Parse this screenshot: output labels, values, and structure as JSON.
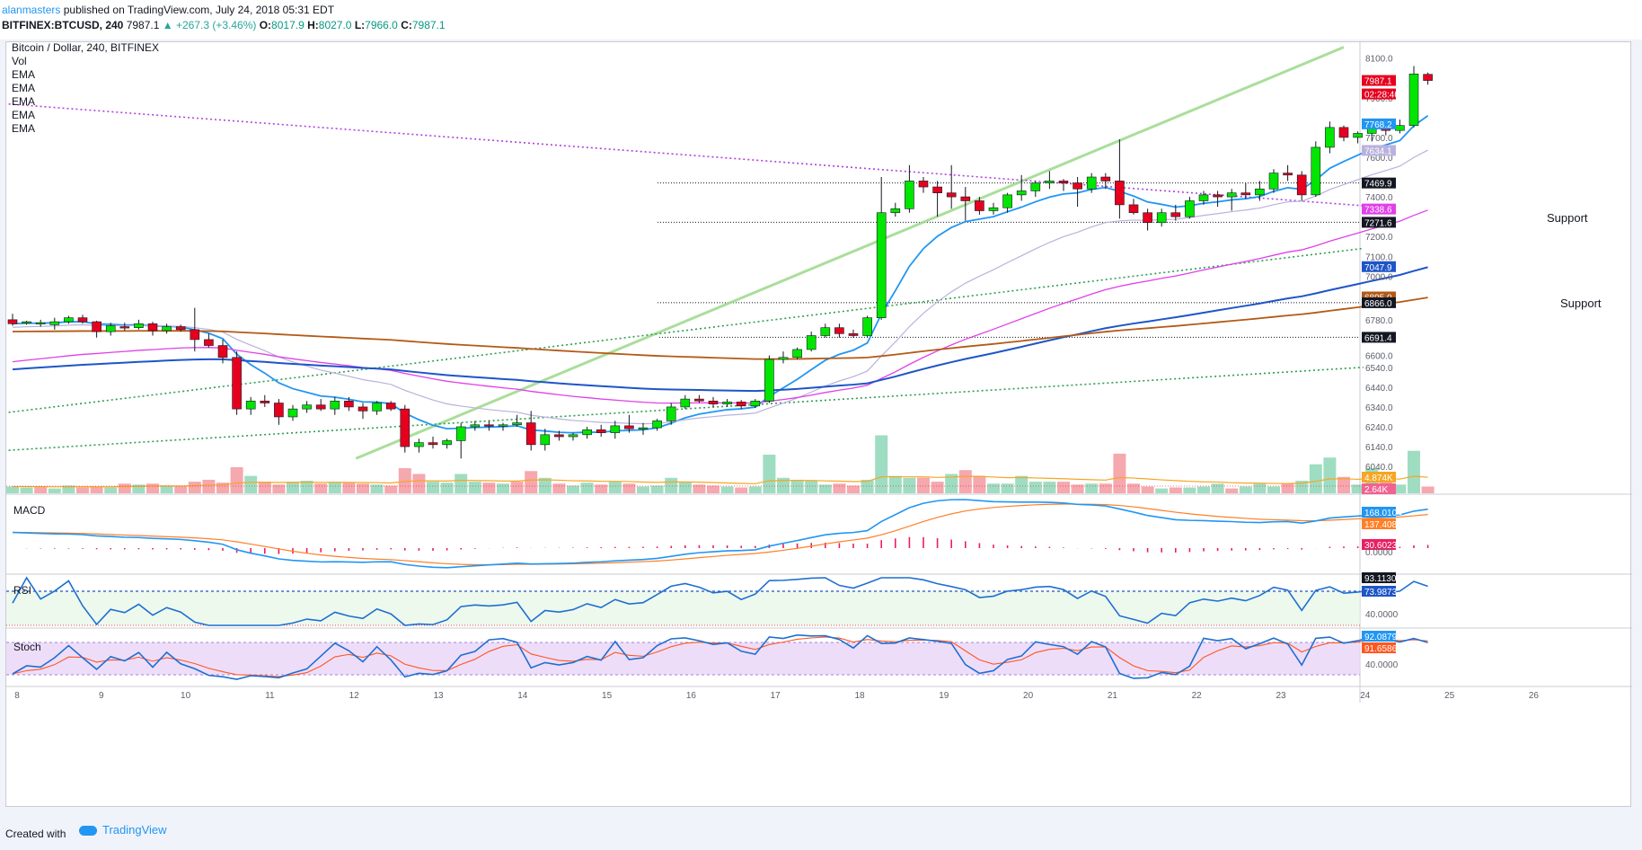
{
  "header": {
    "author": "alanmasters",
    "published": "published on TradingView.com, July 24, 2018 05:31 EDT",
    "symbol": "BITFINEX:BTCUSD, 240",
    "last": "7987.1",
    "change": "▲ +267.3 (+3.46%)",
    "o_label": "O:",
    "o": "8017.9",
    "h_label": "H:",
    "h": "8027.0",
    "l_label": "L:",
    "l": "7966.0",
    "c_label": "C:",
    "c": "7987.1"
  },
  "legend": {
    "title": "Bitcoin / Dollar, 240, BITFINEX",
    "items": [
      "Vol",
      "EMA",
      "EMA",
      "EMA",
      "EMA",
      "EMA"
    ]
  },
  "labels": {
    "support_1": "Support",
    "support_2": "Support",
    "macd": "MACD",
    "rsi": "RSI",
    "stoch": "Stoch"
  },
  "footer": {
    "created": "Created with",
    "brand": "TradingView"
  },
  "colors": {
    "up": "#00e600",
    "down": "#e6001e",
    "ema_fast": "#2196f3",
    "ema_slow_thin": "#b9b2dd",
    "ema_magenta": "#e040e8",
    "ema_blue": "#1e55c8",
    "ema_brown": "#b35a16",
    "trend_green": "#9bd889",
    "trend_purple": "#b040e0",
    "trend_dotted_green": "#2e9e4e"
  },
  "chart_data": {
    "type": "candlestick",
    "symbol": "BTCUSD",
    "interval": "240",
    "x_ticks": [
      "8",
      "9",
      "10",
      "11",
      "12",
      "13",
      "14",
      "15",
      "16",
      "17",
      "18",
      "19",
      "20",
      "21",
      "22",
      "23",
      "24",
      "25",
      "26"
    ],
    "ylim": [
      5900,
      8180
    ],
    "y_ticks": [
      8100.0,
      7900.0,
      7700.0,
      7600.0,
      7400.0,
      7200.0,
      7100.0,
      7000.0,
      6900.0,
      6780.0,
      6600.0,
      6540.0,
      6440.0,
      6340.0,
      6240.0,
      6140.0,
      6040.0
    ],
    "y_tick_labels": [
      "8100.0",
      "7900.0",
      "7700.0",
      "7600.0",
      "7400.0",
      "7200.0",
      "7100.0",
      "7000.0",
      "6900.0",
      "6780.0",
      "6600.0",
      "6540.0",
      "6440.0",
      "6340.0",
      "6240.0",
      "6140.0",
      "6040.0"
    ],
    "price_badges": [
      {
        "value": 7987.1,
        "text": "7987.1",
        "color": "#e6001e"
      },
      {
        "value": 7987.1,
        "text": "02:28:40",
        "color": "#e6001e",
        "offset": 1
      },
      {
        "value": 7768.2,
        "text": "7768.2",
        "color": "#2196f3"
      },
      {
        "value": 7634.1,
        "text": "7634.1",
        "color": "#b9b2dd"
      },
      {
        "value": 7469.9,
        "text": "7469.9",
        "color": "#131722"
      },
      {
        "value": 7338.6,
        "text": "7338.6",
        "color": "#e040e8"
      },
      {
        "value": 7271.6,
        "text": "7271.6",
        "color": "#131722"
      },
      {
        "value": 7047.9,
        "text": "7047.9",
        "color": "#1e55c8"
      },
      {
        "value": 6895.0,
        "text": "6895.0",
        "color": "#b35a16"
      },
      {
        "value": 6866.0,
        "text": "6866.0",
        "color": "#131722"
      },
      {
        "value": 6691.4,
        "text": "6691.4",
        "color": "#131722"
      }
    ],
    "horizontal_levels": [
      7469.9,
      7271.6,
      6866.0,
      6691.4
    ],
    "candles": [
      [
        6780.0,
        6810.0,
        6750.0,
        6760.0
      ],
      [
        6765.0,
        6775.0,
        6755.0,
        6770.0
      ],
      [
        6760.0,
        6780.0,
        6745.0,
        6765.0
      ],
      [
        6755.0,
        6790.0,
        6730.0,
        6770.0
      ],
      [
        6770.0,
        6800.0,
        6760.0,
        6790.0
      ],
      [
        6790.0,
        6805.0,
        6760.0,
        6770.0
      ],
      [
        6770.0,
        6775.0,
        6690.0,
        6720.0
      ],
      [
        6720.0,
        6765.0,
        6700.0,
        6750.0
      ],
      [
        6745.0,
        6765.0,
        6725.0,
        6740.0
      ],
      [
        6740.0,
        6780.0,
        6730.0,
        6760.0
      ],
      [
        6760.0,
        6770.0,
        6700.0,
        6725.0
      ],
      [
        6725.0,
        6760.0,
        6710.0,
        6745.0
      ],
      [
        6745.0,
        6755.0,
        6720.0,
        6730.0
      ],
      [
        6730.0,
        6840.0,
        6620.0,
        6680.0
      ],
      [
        6680.0,
        6710.0,
        6640.0,
        6650.0
      ],
      [
        6650.0,
        6680.0,
        6560.0,
        6590.0
      ],
      [
        6590.0,
        6620.0,
        6300.0,
        6330.0
      ],
      [
        6330.0,
        6390.0,
        6300.0,
        6370.0
      ],
      [
        6370.0,
        6400.0,
        6340.0,
        6360.0
      ],
      [
        6360.0,
        6380.0,
        6250.0,
        6290.0
      ],
      [
        6290.0,
        6350.0,
        6270.0,
        6330.0
      ],
      [
        6330.0,
        6370.0,
        6310.0,
        6350.0
      ],
      [
        6350.0,
        6380.0,
        6320.0,
        6330.0
      ],
      [
        6330.0,
        6390.0,
        6300.0,
        6370.0
      ],
      [
        6370.0,
        6390.0,
        6320.0,
        6340.0
      ],
      [
        6340.0,
        6360.0,
        6280.0,
        6320.0
      ],
      [
        6320.0,
        6370.0,
        6300.0,
        6360.0
      ],
      [
        6360.0,
        6370.0,
        6320.0,
        6330.0
      ],
      [
        6330.0,
        6350.0,
        6110.0,
        6140.0
      ],
      [
        6140.0,
        6180.0,
        6110.0,
        6160.0
      ],
      [
        6160.0,
        6190.0,
        6130.0,
        6150.0
      ],
      [
        6150.0,
        6180.0,
        6130.0,
        6170.0
      ],
      [
        6170.0,
        6260.0,
        6080.0,
        6240.0
      ],
      [
        6240.0,
        6270.0,
        6220.0,
        6250.0
      ],
      [
        6250.0,
        6270.0,
        6220.0,
        6245.0
      ],
      [
        6245.0,
        6260.0,
        6220.0,
        6250.0
      ],
      [
        6250.0,
        6300.0,
        6240.0,
        6260.0
      ],
      [
        6260.0,
        6320.0,
        6120.0,
        6150.0
      ],
      [
        6150.0,
        6230.0,
        6120.0,
        6200.0
      ],
      [
        6200.0,
        6220.0,
        6170.0,
        6190.0
      ],
      [
        6190.0,
        6210.0,
        6170.0,
        6200.0
      ],
      [
        6200.0,
        6240.0,
        6180.0,
        6225.0
      ],
      [
        6225.0,
        6250.0,
        6190.0,
        6210.0
      ],
      [
        6210.0,
        6270.0,
        6180.0,
        6245.0
      ],
      [
        6245.0,
        6300.0,
        6210.0,
        6230.0
      ],
      [
        6230.0,
        6260.0,
        6200.0,
        6235.0
      ],
      [
        6235.0,
        6280.0,
        6220.0,
        6270.0
      ],
      [
        6270.0,
        6360.0,
        6250.0,
        6340.0
      ],
      [
        6340.0,
        6400.0,
        6330.0,
        6380.0
      ],
      [
        6380.0,
        6400.0,
        6360.0,
        6370.0
      ],
      [
        6370.0,
        6390.0,
        6340.0,
        6355.0
      ],
      [
        6355.0,
        6380.0,
        6340.0,
        6365.0
      ],
      [
        6365.0,
        6375.0,
        6330.0,
        6345.0
      ],
      [
        6345.0,
        6380.0,
        6335.0,
        6370.0
      ],
      [
        6370.0,
        6600.0,
        6360.0,
        6580.0
      ],
      [
        6580.0,
        6620.0,
        6560.0,
        6590.0
      ],
      [
        6590.0,
        6640.0,
        6580.0,
        6630.0
      ],
      [
        6630.0,
        6720.0,
        6620.0,
        6700.0
      ],
      [
        6700.0,
        6760.0,
        6690.0,
        6740.0
      ],
      [
        6740.0,
        6760.0,
        6690.0,
        6710.0
      ],
      [
        6710.0,
        6730.0,
        6690.0,
        6700.0
      ],
      [
        6700.0,
        6800.0,
        6690.0,
        6790.0
      ],
      [
        6790.0,
        7500.0,
        6780.0,
        7320.0
      ],
      [
        7320.0,
        7370.0,
        7300.0,
        7340.0
      ],
      [
        7340.0,
        7560.0,
        7320.0,
        7480.0
      ],
      [
        7480.0,
        7500.0,
        7420.0,
        7450.0
      ],
      [
        7450.0,
        7480.0,
        7300.0,
        7420.0
      ],
      [
        7420.0,
        7560.0,
        7340.0,
        7400.0
      ],
      [
        7400.0,
        7450.0,
        7280.0,
        7380.0
      ],
      [
        7380.0,
        7400.0,
        7310.0,
        7330.0
      ],
      [
        7330.0,
        7370.0,
        7310.0,
        7345.0
      ],
      [
        7345.0,
        7420.0,
        7320.0,
        7410.0
      ],
      [
        7410.0,
        7510.0,
        7380.0,
        7430.0
      ],
      [
        7430.0,
        7480.0,
        7400.0,
        7470.0
      ],
      [
        7470.0,
        7530.0,
        7440.0,
        7480.0
      ],
      [
        7480.0,
        7490.0,
        7430.0,
        7470.0
      ],
      [
        7470.0,
        7500.0,
        7350.0,
        7440.0
      ],
      [
        7440.0,
        7520.0,
        7420.0,
        7500.0
      ],
      [
        7500.0,
        7520.0,
        7440.0,
        7480.0
      ],
      [
        7480.0,
        7690.0,
        7290.0,
        7360.0
      ],
      [
        7360.0,
        7390.0,
        7310.0,
        7320.0
      ],
      [
        7320.0,
        7340.0,
        7230.0,
        7270.0
      ],
      [
        7270.0,
        7340.0,
        7250.0,
        7320.0
      ],
      [
        7320.0,
        7360.0,
        7280.0,
        7300.0
      ],
      [
        7300.0,
        7400.0,
        7290.0,
        7380.0
      ],
      [
        7380.0,
        7430.0,
        7360.0,
        7410.0
      ],
      [
        7410.0,
        7430.0,
        7350.0,
        7400.0
      ],
      [
        7400.0,
        7440.0,
        7330.0,
        7420.0
      ],
      [
        7420.0,
        7470.0,
        7390.0,
        7410.0
      ],
      [
        7410.0,
        7480.0,
        7380.0,
        7440.0
      ],
      [
        7440.0,
        7540.0,
        7420.0,
        7520.0
      ],
      [
        7520.0,
        7560.0,
        7480.0,
        7510.0
      ],
      [
        7510.0,
        7530.0,
        7380.0,
        7410.0
      ],
      [
        7410.0,
        7680.0,
        7400.0,
        7650.0
      ],
      [
        7650.0,
        7780.0,
        7620.0,
        7750.0
      ],
      [
        7750.0,
        7760.0,
        7680.0,
        7700.0
      ],
      [
        7700.0,
        7730.0,
        7670.0,
        7720.0
      ],
      [
        7720.0,
        7780.0,
        7680.0,
        7750.0
      ],
      [
        7750.0,
        7770.0,
        7710.0,
        7735.0
      ],
      [
        7735.0,
        7790.0,
        7720.0,
        7760.0
      ],
      [
        7760.0,
        8060.0,
        7750.0,
        8020.0
      ],
      [
        8018.0,
        8027.0,
        7966.0,
        7987.1
      ]
    ],
    "volume": [
      [
        0.35,
        "up"
      ],
      [
        0.3,
        "up"
      ],
      [
        0.32,
        "down"
      ],
      [
        0.25,
        "up"
      ],
      [
        0.4,
        "up"
      ],
      [
        0.3,
        "down"
      ],
      [
        0.35,
        "down"
      ],
      [
        0.3,
        "up"
      ],
      [
        0.5,
        "down"
      ],
      [
        0.45,
        "up"
      ],
      [
        0.5,
        "down"
      ],
      [
        0.4,
        "up"
      ],
      [
        0.35,
        "down"
      ],
      [
        0.6,
        "down"
      ],
      [
        0.7,
        "down"
      ],
      [
        0.55,
        "down"
      ],
      [
        1.35,
        "down"
      ],
      [
        0.9,
        "up"
      ],
      [
        0.6,
        "down"
      ],
      [
        0.45,
        "down"
      ],
      [
        0.6,
        "up"
      ],
      [
        0.65,
        "up"
      ],
      [
        0.5,
        "down"
      ],
      [
        0.6,
        "up"
      ],
      [
        0.55,
        "down"
      ],
      [
        0.5,
        "down"
      ],
      [
        0.45,
        "up"
      ],
      [
        0.4,
        "down"
      ],
      [
        1.3,
        "down"
      ],
      [
        1.0,
        "down"
      ],
      [
        0.6,
        "up"
      ],
      [
        0.55,
        "up"
      ],
      [
        1.0,
        "up"
      ],
      [
        0.6,
        "up"
      ],
      [
        0.55,
        "down"
      ],
      [
        0.5,
        "up"
      ],
      [
        0.6,
        "down"
      ],
      [
        1.15,
        "down"
      ],
      [
        0.8,
        "up"
      ],
      [
        0.5,
        "down"
      ],
      [
        0.4,
        "up"
      ],
      [
        0.55,
        "up"
      ],
      [
        0.45,
        "down"
      ],
      [
        0.6,
        "up"
      ],
      [
        0.5,
        "down"
      ],
      [
        0.35,
        "up"
      ],
      [
        0.4,
        "up"
      ],
      [
        0.8,
        "up"
      ],
      [
        0.6,
        "up"
      ],
      [
        0.45,
        "down"
      ],
      [
        0.4,
        "down"
      ],
      [
        0.35,
        "up"
      ],
      [
        0.3,
        "down"
      ],
      [
        0.35,
        "up"
      ],
      [
        2.0,
        "up"
      ],
      [
        0.8,
        "up"
      ],
      [
        0.7,
        "up"
      ],
      [
        0.65,
        "up"
      ],
      [
        0.45,
        "up"
      ],
      [
        0.5,
        "down"
      ],
      [
        0.4,
        "down"
      ],
      [
        0.7,
        "up"
      ],
      [
        3.0,
        "up"
      ],
      [
        0.9,
        "up"
      ],
      [
        0.8,
        "up"
      ],
      [
        0.8,
        "down"
      ],
      [
        0.6,
        "down"
      ],
      [
        1.0,
        "up"
      ],
      [
        1.2,
        "down"
      ],
      [
        0.9,
        "down"
      ],
      [
        0.5,
        "up"
      ],
      [
        0.5,
        "up"
      ],
      [
        0.9,
        "up"
      ],
      [
        0.6,
        "up"
      ],
      [
        0.6,
        "up"
      ],
      [
        0.6,
        "down"
      ],
      [
        0.45,
        "down"
      ],
      [
        0.5,
        "up"
      ],
      [
        0.5,
        "down"
      ],
      [
        2.05,
        "down"
      ],
      [
        0.5,
        "down"
      ],
      [
        0.35,
        "down"
      ],
      [
        0.25,
        "up"
      ],
      [
        0.3,
        "down"
      ],
      [
        0.3,
        "up"
      ],
      [
        0.35,
        "up"
      ],
      [
        0.5,
        "up"
      ],
      [
        0.25,
        "down"
      ],
      [
        0.35,
        "up"
      ],
      [
        0.5,
        "up"
      ],
      [
        0.35,
        "up"
      ],
      [
        0.5,
        "down"
      ],
      [
        0.65,
        "up"
      ],
      [
        1.5,
        "up"
      ],
      [
        1.85,
        "up"
      ],
      [
        0.85,
        "down"
      ],
      [
        0.45,
        "up"
      ],
      [
        1.3,
        "up"
      ],
      [
        0.65,
        "down"
      ],
      [
        0.45,
        "up"
      ],
      [
        2.2,
        "up"
      ],
      [
        0.35,
        "down"
      ]
    ],
    "volume_ma_label": "4.874K",
    "volume_last_label": "2.64K",
    "ema_last": {
      "ema_fast": 7768.2,
      "ema_thin": 7634.1,
      "ema_magenta": 7338.6,
      "ema_blue": 7047.9,
      "ema_brown": 6895.0
    },
    "macd": {
      "macd_last": "168.0104",
      "signal_last": "137.4080",
      "hist_last": "30.6023",
      "zero_label": "0.0000"
    },
    "rsi": {
      "last": "73.9873",
      "upper_label": "93.1130",
      "tick": "40.0000",
      "bands": [
        70,
        30
      ]
    },
    "stoch": {
      "k_last": "92.0879",
      "d_last": "91.6586",
      "tick": "40.0000",
      "bands": [
        80,
        20
      ]
    }
  }
}
